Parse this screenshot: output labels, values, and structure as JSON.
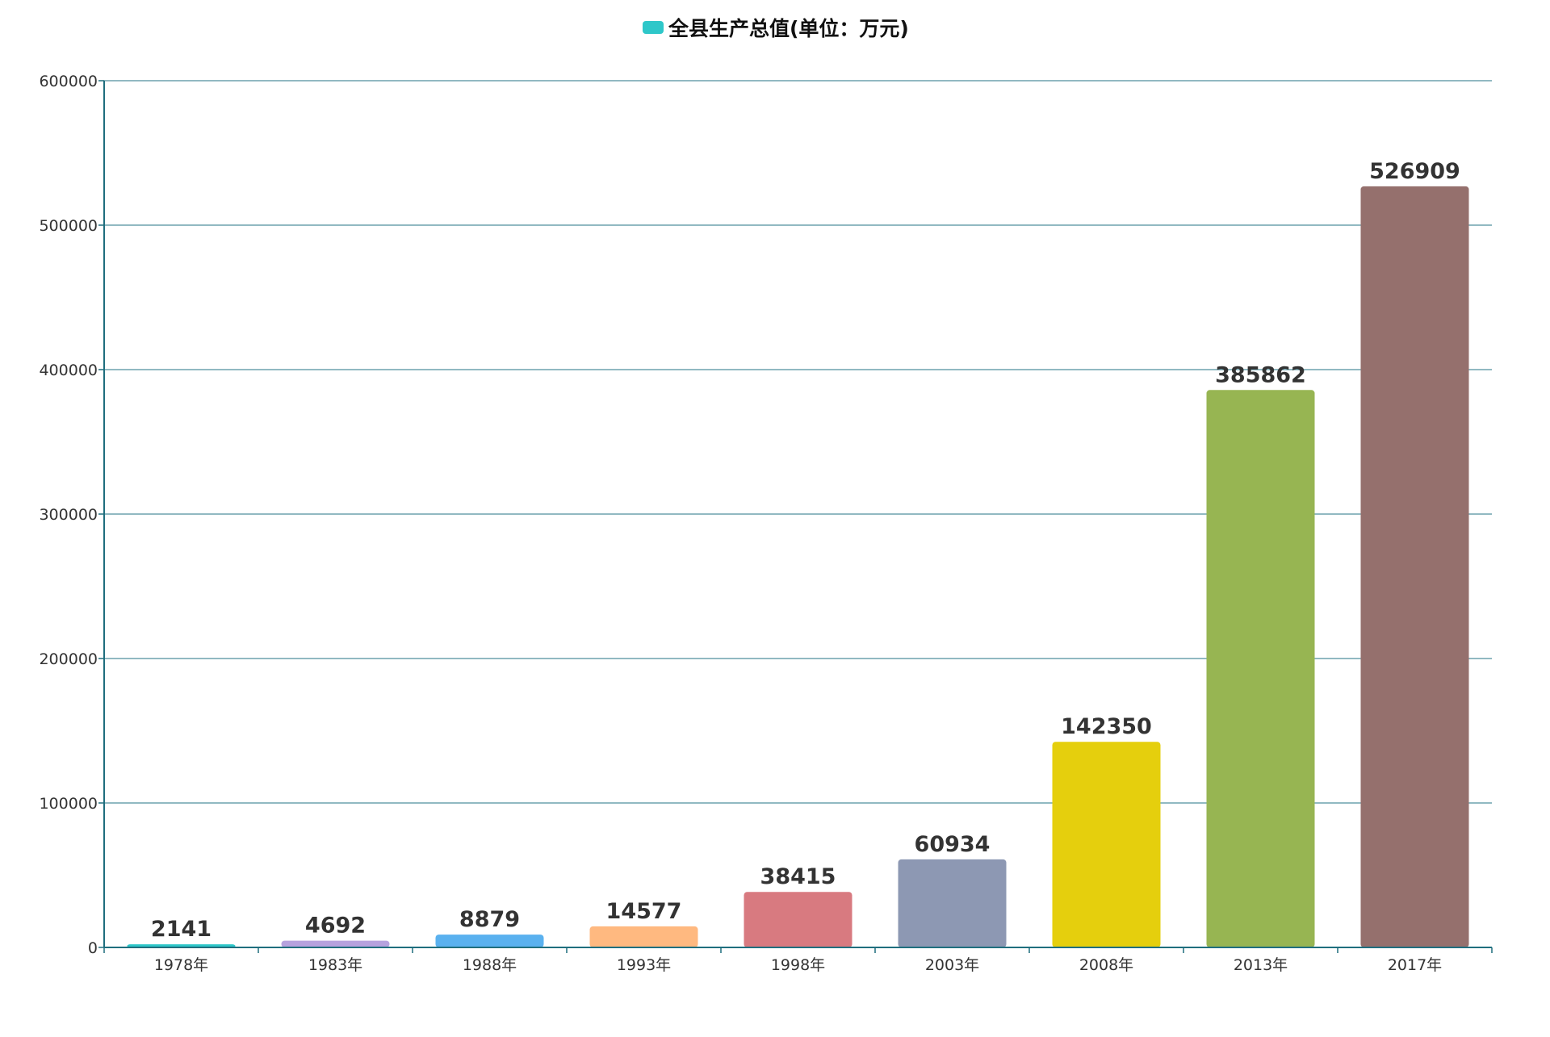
{
  "chart_data": {
    "type": "bar",
    "categories": [
      "1978年",
      "1983年",
      "1988年",
      "1993年",
      "1998年",
      "2003年",
      "2008年",
      "2013年",
      "2017年"
    ],
    "series": [
      {
        "name": "全县生产总值(单位：万元)",
        "values": [
          2141,
          4692,
          8879,
          14577,
          38415,
          60934,
          142350,
          385862,
          526909
        ]
      }
    ],
    "value_labels": [
      "2141",
      "4692",
      "8879",
      "14577",
      "38415",
      "60934",
      "142350",
      "385862",
      "526909"
    ],
    "y_ticks": [
      "0",
      "100000",
      "200000",
      "300000",
      "400000",
      "500000",
      "600000"
    ],
    "ylim": [
      0,
      600000
    ],
    "grid": true,
    "legend_position": "top-center",
    "colors": {
      "bars": [
        "#2ec7c9",
        "#b6a2de",
        "#5ab1ef",
        "#ffb980",
        "#d87a80",
        "#8d98b3",
        "#e5cf0d",
        "#97b552",
        "#95706d"
      ],
      "legend_swatch": "#2ec7c9",
      "axis": "#1f6e7e",
      "grid": "#4f8f9e"
    }
  }
}
